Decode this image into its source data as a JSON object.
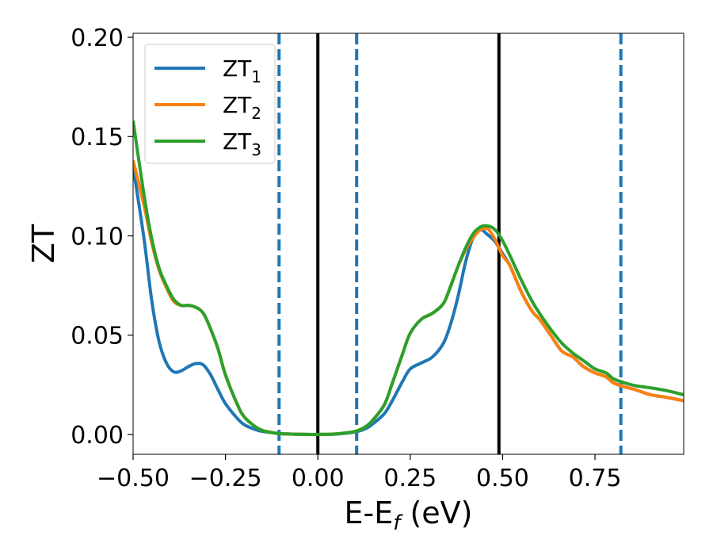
{
  "chart_data": {
    "type": "line",
    "xlabel_main": "E-E",
    "xlabel_sub": "f",
    "xlabel_unit": " (eV)",
    "ylabel": "ZT",
    "xlim": [
      -0.5,
      0.99
    ],
    "ylim": [
      -0.01,
      0.202
    ],
    "x_ticks": [
      -0.5,
      -0.25,
      0.0,
      0.25,
      0.5,
      0.75
    ],
    "x_tick_labels": [
      "−0.50",
      "−0.25",
      "0.00",
      "0.25",
      "0.50",
      "0.75"
    ],
    "y_ticks": [
      0.0,
      0.05,
      0.1,
      0.15,
      0.2
    ],
    "y_tick_labels": [
      "0.00",
      "0.05",
      "0.10",
      "0.15",
      "0.20"
    ],
    "grid": false,
    "legend_position": "top-left",
    "series": [
      {
        "name_main": "ZT",
        "name_sub": "1",
        "color": "#1f77b4",
        "x": [
          -0.5,
          -0.47,
          -0.45,
          -0.43,
          -0.41,
          -0.39,
          -0.37,
          -0.35,
          -0.33,
          -0.31,
          -0.29,
          -0.27,
          -0.25,
          -0.22,
          -0.2,
          -0.17,
          -0.15,
          -0.12,
          -0.1,
          -0.05,
          0.0,
          0.05,
          0.1,
          0.13,
          0.15,
          0.18,
          0.2,
          0.23,
          0.25,
          0.28,
          0.31,
          0.34,
          0.36,
          0.38,
          0.4,
          0.42,
          0.44,
          0.46,
          0.48,
          0.5,
          0.52,
          0.55,
          0.58,
          0.6,
          0.63,
          0.66,
          0.69,
          0.72,
          0.75,
          0.78,
          0.8,
          0.83,
          0.86,
          0.9,
          0.94,
          0.99
        ],
        "y": [
          0.135,
          0.098,
          0.068,
          0.047,
          0.036,
          0.0315,
          0.032,
          0.0342,
          0.0357,
          0.035,
          0.03,
          0.0225,
          0.0155,
          0.0085,
          0.005,
          0.0025,
          0.0015,
          0.0008,
          0.0004,
          0.0001,
          0.0,
          0.0002,
          0.0012,
          0.003,
          0.0055,
          0.0105,
          0.0165,
          0.027,
          0.033,
          0.036,
          0.039,
          0.046,
          0.056,
          0.07,
          0.087,
          0.099,
          0.103,
          0.1005,
          0.097,
          0.091,
          0.085,
          0.072,
          0.062,
          0.058,
          0.05,
          0.042,
          0.039,
          0.034,
          0.031,
          0.029,
          0.026,
          0.024,
          0.0225,
          0.02,
          0.0188,
          0.017
        ]
      },
      {
        "name_main": "ZT",
        "name_sub": "2",
        "color": "#ff7f0e",
        "x": [
          -0.5,
          -0.47,
          -0.45,
          -0.43,
          -0.41,
          -0.39,
          -0.37,
          -0.35,
          -0.33,
          -0.31,
          -0.29,
          -0.27,
          -0.25,
          -0.22,
          -0.2,
          -0.17,
          -0.15,
          -0.12,
          -0.1,
          -0.05,
          0.0,
          0.05,
          0.1,
          0.13,
          0.15,
          0.18,
          0.2,
          0.23,
          0.25,
          0.28,
          0.31,
          0.34,
          0.36,
          0.38,
          0.4,
          0.42,
          0.44,
          0.46,
          0.48,
          0.5,
          0.52,
          0.55,
          0.58,
          0.6,
          0.63,
          0.66,
          0.69,
          0.72,
          0.75,
          0.78,
          0.8,
          0.83,
          0.86,
          0.9,
          0.94,
          0.99
        ],
        "y": [
          0.138,
          0.115,
          0.097,
          0.083,
          0.074,
          0.067,
          0.065,
          0.065,
          0.064,
          0.061,
          0.053,
          0.043,
          0.03,
          0.016,
          0.009,
          0.004,
          0.002,
          0.0008,
          0.0004,
          0.0001,
          0.0,
          0.0003,
          0.0015,
          0.004,
          0.0075,
          0.015,
          0.025,
          0.041,
          0.051,
          0.058,
          0.061,
          0.066,
          0.075,
          0.085,
          0.093,
          0.099,
          0.103,
          0.1035,
          0.098,
          0.09,
          0.085,
          0.072,
          0.062,
          0.058,
          0.05,
          0.042,
          0.039,
          0.034,
          0.031,
          0.029,
          0.026,
          0.024,
          0.0225,
          0.02,
          0.0188,
          0.017
        ]
      },
      {
        "name_main": "ZT",
        "name_sub": "3",
        "color": "#2ca02c",
        "x": [
          -0.5,
          -0.47,
          -0.45,
          -0.43,
          -0.41,
          -0.39,
          -0.37,
          -0.35,
          -0.33,
          -0.31,
          -0.29,
          -0.27,
          -0.25,
          -0.22,
          -0.2,
          -0.17,
          -0.15,
          -0.12,
          -0.1,
          -0.05,
          0.0,
          0.05,
          0.1,
          0.13,
          0.15,
          0.18,
          0.2,
          0.23,
          0.25,
          0.28,
          0.31,
          0.34,
          0.36,
          0.38,
          0.4,
          0.42,
          0.44,
          0.46,
          0.48,
          0.5,
          0.52,
          0.55,
          0.58,
          0.6,
          0.63,
          0.66,
          0.69,
          0.72,
          0.75,
          0.78,
          0.8,
          0.83,
          0.86,
          0.9,
          0.94,
          0.99
        ],
        "y": [
          0.158,
          0.12,
          0.099,
          0.084,
          0.075,
          0.068,
          0.065,
          0.065,
          0.064,
          0.061,
          0.053,
          0.043,
          0.03,
          0.016,
          0.009,
          0.004,
          0.002,
          0.0008,
          0.0004,
          0.0001,
          0.0,
          0.0003,
          0.0015,
          0.004,
          0.0075,
          0.015,
          0.025,
          0.041,
          0.051,
          0.058,
          0.061,
          0.066,
          0.075,
          0.085,
          0.094,
          0.101,
          0.1045,
          0.105,
          0.103,
          0.0975,
          0.09,
          0.078,
          0.067,
          0.061,
          0.053,
          0.046,
          0.041,
          0.037,
          0.033,
          0.031,
          0.028,
          0.026,
          0.0245,
          0.0235,
          0.0222,
          0.02
        ]
      }
    ],
    "vertical_lines": [
      {
        "x": 0.0,
        "style": "solid",
        "color": "#000000"
      },
      {
        "x": 0.49,
        "style": "solid",
        "color": "#000000"
      },
      {
        "x": -0.105,
        "style": "dashed",
        "color": "#1f77b4"
      },
      {
        "x": 0.105,
        "style": "dashed",
        "color": "#1f77b4"
      },
      {
        "x": 0.82,
        "style": "dashed",
        "color": "#1f77b4"
      }
    ]
  }
}
